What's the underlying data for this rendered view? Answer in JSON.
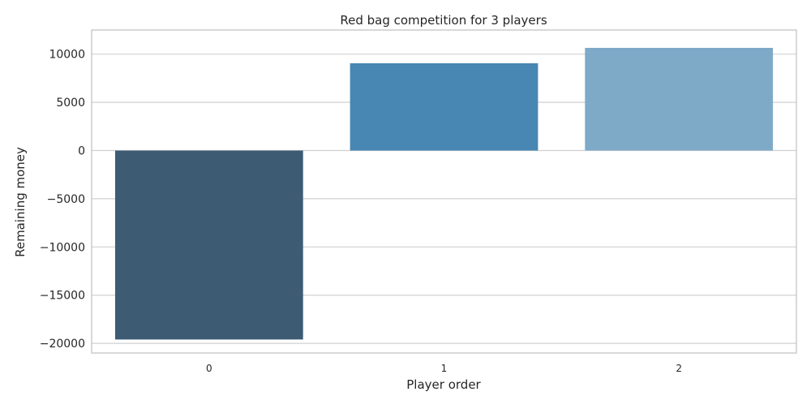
{
  "chart_data": {
    "type": "bar",
    "title": "Red bag competition for 3 players",
    "xlabel": "Player order",
    "ylabel": "Remaining money",
    "categories": [
      "0",
      "1",
      "2"
    ],
    "values": [
      -19600,
      9050,
      10650
    ],
    "ylim": [
      -21000,
      12500
    ],
    "yticks": [
      -20000,
      -15000,
      -10000,
      -5000,
      0,
      5000,
      10000
    ],
    "ytick_labels": [
      "−20000",
      "−15000",
      "−10000",
      "−5000",
      "0",
      "5000",
      "10000"
    ],
    "grid": true,
    "legend": "none",
    "colors": [
      "#3d5c74",
      "#4886b4",
      "#7eaac8"
    ],
    "grid_color": "#d0d0d0",
    "frame_color": "#cccccc"
  }
}
